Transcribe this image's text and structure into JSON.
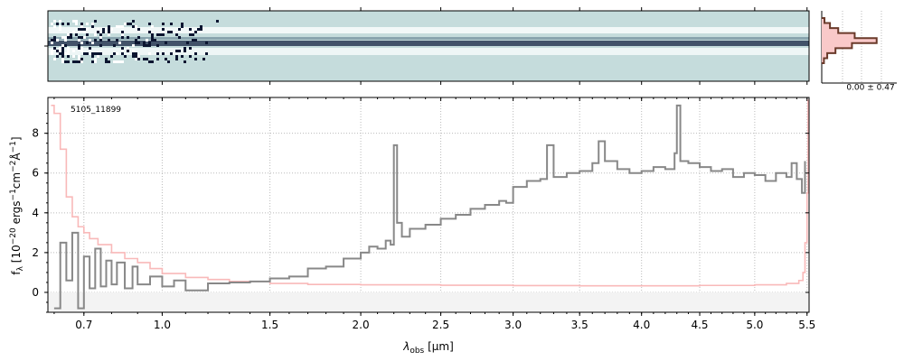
{
  "chart_data": {
    "type": "line",
    "annotation": "5105_11899",
    "xlabel_main": "λ",
    "xlabel_sub": "obs",
    "xlabel_unit": " [μm]",
    "ylabel_text": "f_λ [10^-20 ergs^-1cm^-2Å^-1]",
    "ylabel_parts": {
      "f": "f",
      "lam": "λ",
      "open": " [10",
      "exp1": "−20",
      "mid1": " ergs",
      "exp2": "−1",
      "mid2": "cm",
      "exp3": "−2",
      "mid3": "Å",
      "exp4": "−1",
      "close": "]"
    },
    "xscale": "sqrt",
    "xlim": [
      0.58,
      5.52
    ],
    "ylim": [
      -1.0,
      9.8
    ],
    "xticks": [
      {
        "v": 0.7,
        "label": "0.7"
      },
      {
        "v": 1.0,
        "label": "1.0"
      },
      {
        "v": 1.5,
        "label": "1.5"
      },
      {
        "v": 2.0,
        "label": "2.0"
      },
      {
        "v": 2.5,
        "label": "2.5"
      },
      {
        "v": 3.0,
        "label": "3.0"
      },
      {
        "v": 3.5,
        "label": "3.5"
      },
      {
        "v": 4.0,
        "label": "4.0"
      },
      {
        "v": 4.5,
        "label": "4.5"
      },
      {
        "v": 5.0,
        "label": "5.0"
      },
      {
        "v": 5.5,
        "label": "5.5"
      }
    ],
    "yticks": [
      {
        "v": 0,
        "label": "0"
      },
      {
        "v": 2,
        "label": "2"
      },
      {
        "v": 4,
        "label": "4"
      },
      {
        "v": 6,
        "label": "6"
      },
      {
        "v": 8,
        "label": "8"
      }
    ],
    "grid": true,
    "series": [
      {
        "kind": "flux",
        "color": "#888888",
        "points": [
          [
            0.6,
            -0.8
          ],
          [
            0.62,
            2.5
          ],
          [
            0.64,
            0.6
          ],
          [
            0.66,
            3.0
          ],
          [
            0.68,
            -0.8
          ],
          [
            0.7,
            1.8
          ],
          [
            0.72,
            0.2
          ],
          [
            0.74,
            2.2
          ],
          [
            0.76,
            0.3
          ],
          [
            0.78,
            1.6
          ],
          [
            0.8,
            0.4
          ],
          [
            0.82,
            1.5
          ],
          [
            0.85,
            0.2
          ],
          [
            0.88,
            1.3
          ],
          [
            0.9,
            0.4
          ],
          [
            0.95,
            0.8
          ],
          [
            1.0,
            0.3
          ],
          [
            1.05,
            0.6
          ],
          [
            1.1,
            0.1
          ],
          [
            1.2,
            0.45
          ],
          [
            1.3,
            0.5
          ],
          [
            1.4,
            0.55
          ],
          [
            1.5,
            0.7
          ],
          [
            1.6,
            0.8
          ],
          [
            1.7,
            1.2
          ],
          [
            1.8,
            1.3
          ],
          [
            1.9,
            1.7
          ],
          [
            2.0,
            2.0
          ],
          [
            2.05,
            2.3
          ],
          [
            2.1,
            2.2
          ],
          [
            2.15,
            2.6
          ],
          [
            2.18,
            2.4
          ],
          [
            2.2,
            7.4
          ],
          [
            2.22,
            3.5
          ],
          [
            2.25,
            2.8
          ],
          [
            2.3,
            3.2
          ],
          [
            2.4,
            3.4
          ],
          [
            2.5,
            3.7
          ],
          [
            2.6,
            3.9
          ],
          [
            2.7,
            4.2
          ],
          [
            2.8,
            4.4
          ],
          [
            2.9,
            4.6
          ],
          [
            2.95,
            4.5
          ],
          [
            3.0,
            5.3
          ],
          [
            3.1,
            5.6
          ],
          [
            3.2,
            5.7
          ],
          [
            3.25,
            7.4
          ],
          [
            3.3,
            5.8
          ],
          [
            3.4,
            6.0
          ],
          [
            3.5,
            6.1
          ],
          [
            3.6,
            6.5
          ],
          [
            3.65,
            7.6
          ],
          [
            3.7,
            6.6
          ],
          [
            3.8,
            6.2
          ],
          [
            3.9,
            6.0
          ],
          [
            4.0,
            6.1
          ],
          [
            4.1,
            6.3
          ],
          [
            4.2,
            6.2
          ],
          [
            4.28,
            7.0
          ],
          [
            4.3,
            9.4
          ],
          [
            4.33,
            6.6
          ],
          [
            4.4,
            6.5
          ],
          [
            4.5,
            6.3
          ],
          [
            4.6,
            6.1
          ],
          [
            4.7,
            6.2
          ],
          [
            4.8,
            5.8
          ],
          [
            4.9,
            6.0
          ],
          [
            5.0,
            5.9
          ],
          [
            5.1,
            5.6
          ],
          [
            5.2,
            6.0
          ],
          [
            5.3,
            5.8
          ],
          [
            5.35,
            6.5
          ],
          [
            5.4,
            5.7
          ],
          [
            5.45,
            5.0
          ],
          [
            5.48,
            6.6
          ]
        ]
      },
      {
        "kind": "error",
        "color": "#f9b9b9",
        "points": [
          [
            0.59,
            9.4
          ],
          [
            0.6,
            9.0
          ],
          [
            0.62,
            7.2
          ],
          [
            0.64,
            4.8
          ],
          [
            0.66,
            3.8
          ],
          [
            0.68,
            3.3
          ],
          [
            0.7,
            3.0
          ],
          [
            0.72,
            2.7
          ],
          [
            0.75,
            2.4
          ],
          [
            0.8,
            2.0
          ],
          [
            0.85,
            1.7
          ],
          [
            0.9,
            1.5
          ],
          [
            0.95,
            1.2
          ],
          [
            1.0,
            0.95
          ],
          [
            1.1,
            0.75
          ],
          [
            1.2,
            0.65
          ],
          [
            1.3,
            0.55
          ],
          [
            1.5,
            0.45
          ],
          [
            1.7,
            0.4
          ],
          [
            2.0,
            0.38
          ],
          [
            2.5,
            0.36
          ],
          [
            3.0,
            0.34
          ],
          [
            3.5,
            0.33
          ],
          [
            4.0,
            0.33
          ],
          [
            4.5,
            0.35
          ],
          [
            5.0,
            0.38
          ],
          [
            5.3,
            0.45
          ],
          [
            5.42,
            0.6
          ],
          [
            5.46,
            1.0
          ],
          [
            5.48,
            2.5
          ],
          [
            5.5,
            5.0
          ],
          [
            5.51,
            9.7
          ]
        ]
      }
    ],
    "side_panel": {
      "label": "0.00 ± 0.47",
      "yvalues": [
        -2,
        -1.5,
        -1,
        -0.5,
        0,
        0.5,
        1,
        1.5,
        2
      ],
      "counts": [
        0.05,
        0.15,
        0.3,
        0.6,
        1.0,
        0.55,
        0.25,
        0.1,
        0.04
      ]
    }
  },
  "colors": {
    "spectrum_bg": "#c5dcdc",
    "flux": "#888888",
    "error": "#f9b9b9",
    "hist": "#6a3a2a",
    "hist_fill": "#f9c9c9"
  }
}
